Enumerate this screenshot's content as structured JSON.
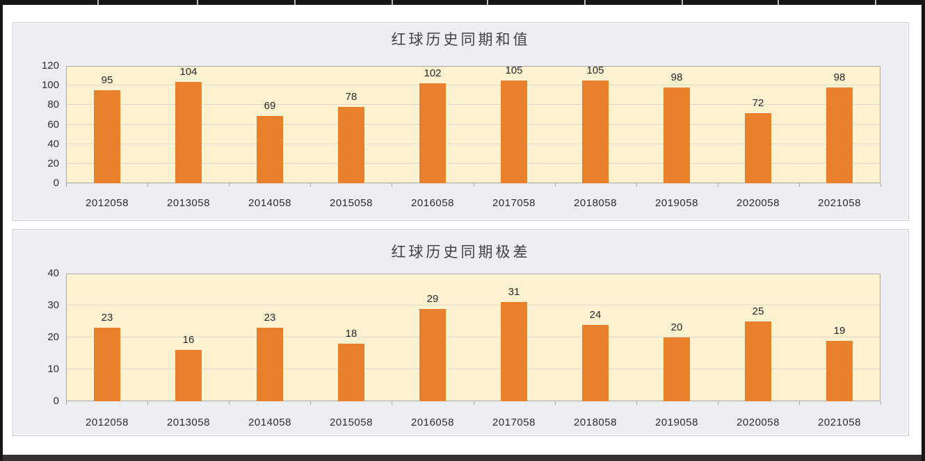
{
  "chart_data": [
    {
      "type": "bar",
      "title": "红球历史同期和值",
      "categories": [
        "2012058",
        "2013058",
        "2014058",
        "2015058",
        "2016058",
        "2017058",
        "2018058",
        "2019058",
        "2020058",
        "2021058"
      ],
      "values": [
        95,
        104,
        69,
        78,
        102,
        105,
        105,
        98,
        72,
        98
      ],
      "xlabel": "",
      "ylabel": "",
      "ylim": [
        0,
        120
      ],
      "y_ticks": [
        0,
        20,
        40,
        60,
        80,
        100,
        120
      ],
      "grid": true,
      "legend_position": "none",
      "data_labels": true
    },
    {
      "type": "bar",
      "title": "红球历史同期极差",
      "categories": [
        "2012058",
        "2013058",
        "2014058",
        "2015058",
        "2016058",
        "2017058",
        "2018058",
        "2019058",
        "2020058",
        "2021058"
      ],
      "values": [
        23,
        16,
        23,
        18,
        29,
        31,
        24,
        20,
        25,
        19
      ],
      "xlabel": "",
      "ylabel": "",
      "ylim": [
        0,
        40
      ],
      "y_ticks": [
        0,
        10,
        20,
        30,
        40
      ],
      "grid": true,
      "legend_position": "none",
      "data_labels": true
    }
  ],
  "colors": {
    "bar": "#E8802C",
    "plot_background": "#FCF2D0",
    "panel_background": "#EDEEF2",
    "panel_border": "#C9CCD3",
    "axis_line": "#A7A8AD",
    "gridline": "#DED3B6",
    "label_text": "#2B2B33",
    "title_text": "#41414C",
    "frame": "#161616"
  }
}
